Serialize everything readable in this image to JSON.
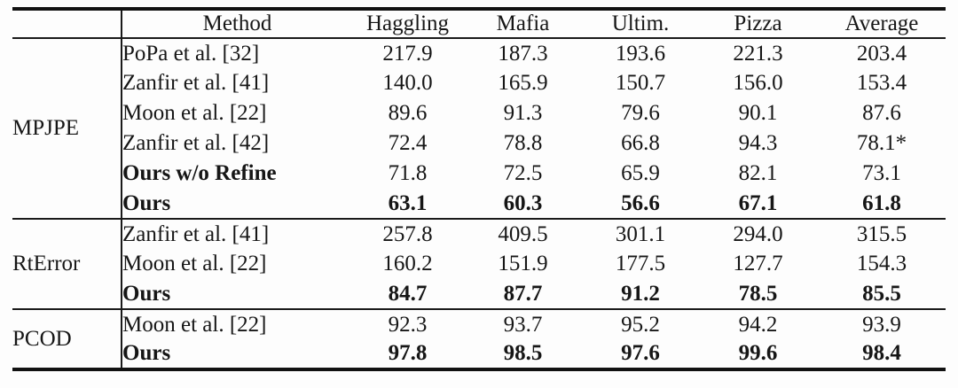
{
  "table": {
    "columns": [
      "Method",
      "Haggling",
      "Mafia",
      "Ultim.",
      "Pizza",
      "Average"
    ],
    "sections": [
      {
        "metric": "MPJPE",
        "rows": [
          {
            "method": "PoPa et al. [32]",
            "bold_method": false,
            "bold_values": false,
            "values": [
              "217.9",
              "187.3",
              "193.6",
              "221.3",
              "203.4"
            ]
          },
          {
            "method": "Zanfir et al. [41]",
            "bold_method": false,
            "bold_values": false,
            "values": [
              "140.0",
              "165.9",
              "150.7",
              "156.0",
              "153.4"
            ]
          },
          {
            "method": "Moon et al. [22]",
            "bold_method": false,
            "bold_values": false,
            "values": [
              "89.6",
              "91.3",
              "79.6",
              "90.1",
              "87.6"
            ]
          },
          {
            "method": "Zanfir et al. [42]",
            "bold_method": false,
            "bold_values": false,
            "values": [
              "72.4",
              "78.8",
              "66.8",
              "94.3",
              "78.1*"
            ]
          },
          {
            "method": "Ours w/o Refine",
            "bold_method": true,
            "bold_values": false,
            "values": [
              "71.8",
              "72.5",
              "65.9",
              "82.1",
              "73.1"
            ]
          },
          {
            "method": "Ours",
            "bold_method": true,
            "bold_values": true,
            "values": [
              "63.1",
              "60.3",
              "56.6",
              "67.1",
              "61.8"
            ]
          }
        ]
      },
      {
        "metric": "RtError",
        "rows": [
          {
            "method": "Zanfir et al. [41]",
            "bold_method": false,
            "bold_values": false,
            "values": [
              "257.8",
              "409.5",
              "301.1",
              "294.0",
              "315.5"
            ]
          },
          {
            "method": "Moon et al. [22]",
            "bold_method": false,
            "bold_values": false,
            "values": [
              "160.2",
              "151.9",
              "177.5",
              "127.7",
              "154.3"
            ]
          },
          {
            "method": "Ours",
            "bold_method": true,
            "bold_values": true,
            "values": [
              "84.7",
              "87.7",
              "91.2",
              "78.5",
              "85.5"
            ]
          }
        ]
      },
      {
        "metric": "PCOD",
        "rows": [
          {
            "method": "Moon et al. [22]",
            "bold_method": false,
            "bold_values": false,
            "values": [
              "92.3",
              "93.7",
              "95.2",
              "94.2",
              "93.9"
            ]
          },
          {
            "method": "Ours",
            "bold_method": true,
            "bold_values": true,
            "values": [
              "97.8",
              "98.5",
              "97.6",
              "99.6",
              "98.4"
            ]
          }
        ]
      }
    ],
    "colors": {
      "rule": "#1a1a1a",
      "heavy_rule": "#121212",
      "text": "#161616",
      "background": "#fdfdfd"
    }
  }
}
